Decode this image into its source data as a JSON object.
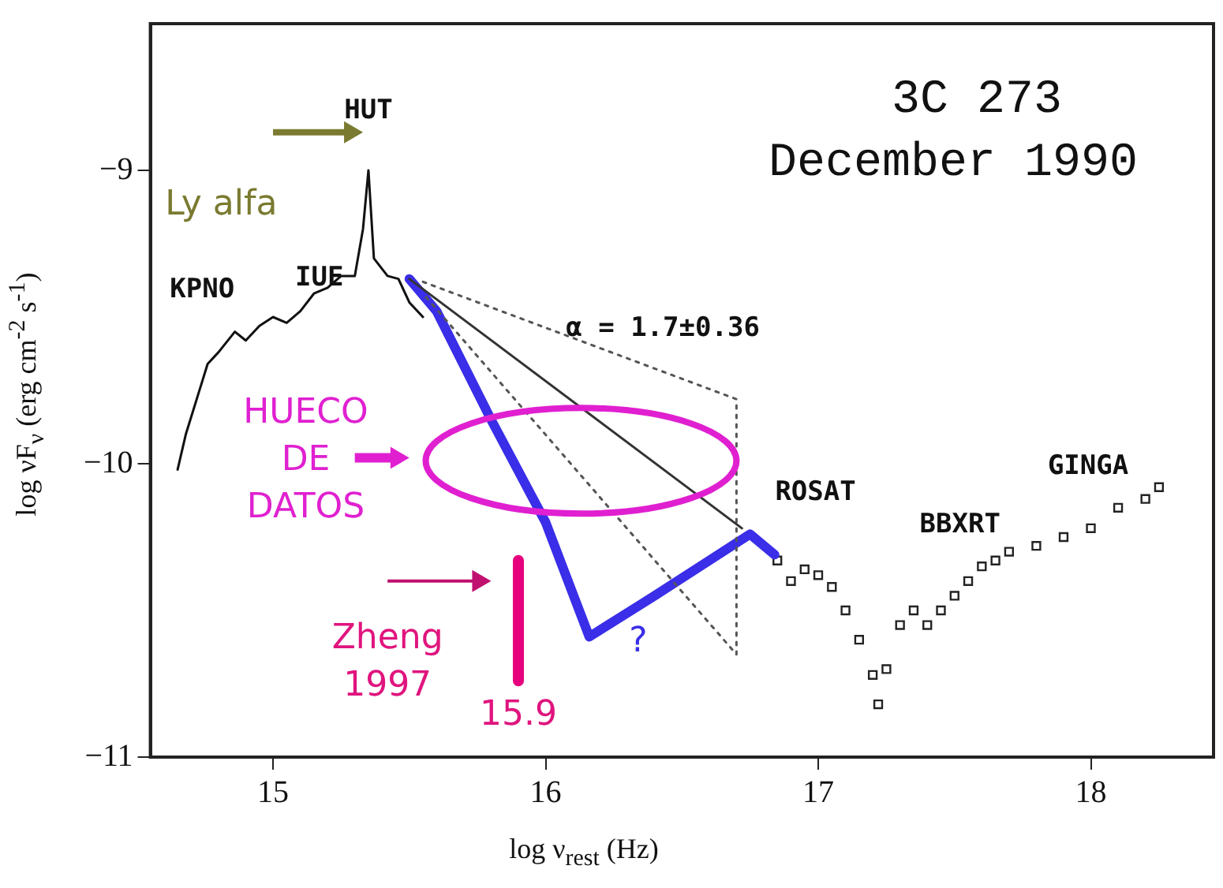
{
  "chart_data": {
    "type": "line",
    "title": "3C 273",
    "subtitle": "December 1990",
    "xlabel": "log ν$_{rest}$ (Hz)",
    "ylabel": "log νF$_{ν}$ (erg cm$^{-2}$ s$^{-1}$)",
    "xlim": [
      14.55,
      18.45
    ],
    "ylim": [
      -11,
      -8.5
    ],
    "xticks": [
      15,
      16,
      17,
      18
    ],
    "yticks": [
      -11,
      -10,
      -9
    ],
    "grid": false,
    "legend": false,
    "series": [
      {
        "color": "#111111",
        "marker": "none",
        "line_style": "solid",
        "x": [
          14.65,
          14.68,
          14.72,
          14.76,
          14.8,
          14.86,
          14.9,
          14.95,
          15.0,
          15.05,
          15.1,
          15.15,
          15.2,
          15.25,
          15.3,
          15.33,
          15.35,
          15.37,
          15.42,
          15.46,
          15.5,
          15.55
        ],
        "values": [
          -10.02,
          -9.9,
          -9.78,
          -9.66,
          -9.62,
          -9.55,
          -9.58,
          -9.53,
          -9.5,
          -9.52,
          -9.48,
          -9.42,
          -9.4,
          -9.36,
          -9.36,
          -9.2,
          -9.0,
          -9.3,
          -9.36,
          -9.37,
          -9.45,
          -9.5
        ]
      },
      {
        "color": "#333333",
        "marker": "none",
        "line_style": "solid",
        "x": [
          15.5,
          16.72
        ],
        "values": [
          -9.37,
          -10.22
        ]
      },
      {
        "color": "#555555",
        "marker": "none",
        "line_style": "dotted",
        "x": [
          15.55,
          16.7,
          16.7,
          15.55
        ],
        "values": [
          -9.38,
          -9.78,
          -10.65,
          -9.42
        ]
      },
      {
        "color": "#3a2ee8",
        "marker": "none",
        "line_style": "solid",
        "x": [
          15.5,
          15.6,
          15.8,
          16.0,
          16.16,
          16.4,
          16.6,
          16.75,
          16.84
        ],
        "values": [
          -9.37,
          -9.48,
          -9.85,
          -10.2,
          -10.59,
          -10.45,
          -10.33,
          -10.24,
          -10.31
        ]
      },
      {
        "color": "#e6007e",
        "marker": "none",
        "line_style": "solid",
        "x": [
          15.9,
          15.9
        ],
        "values": [
          -10.33,
          -10.74
        ]
      },
      {
        "type": "scatter",
        "color": "#222222",
        "marker": "square",
        "x": [
          16.85,
          16.9,
          16.95,
          17.0,
          17.05,
          17.1,
          17.15,
          17.2,
          17.22,
          17.25,
          17.3,
          17.35,
          17.4,
          17.45,
          17.5,
          17.55,
          17.6,
          17.65,
          17.7,
          17.8,
          17.9,
          18.0,
          18.1,
          18.2,
          18.25
        ],
        "values": [
          -10.33,
          -10.4,
          -10.36,
          -10.38,
          -10.42,
          -10.5,
          -10.6,
          -10.72,
          -10.82,
          -10.7,
          -10.55,
          -10.5,
          -10.55,
          -10.5,
          -10.45,
          -10.4,
          -10.35,
          -10.33,
          -10.3,
          -10.28,
          -10.25,
          -10.22,
          -10.15,
          -10.12,
          -10.08
        ]
      }
    ],
    "annotations": [
      "HUT",
      "Ly alfa",
      "KPNO",
      "IUE",
      "α = 1.7±0.36",
      "HUECO DE DATOS",
      "ROSAT",
      "BBXRT",
      "GINGA",
      "Zheng 1997",
      "15.9",
      "?"
    ]
  }
}
